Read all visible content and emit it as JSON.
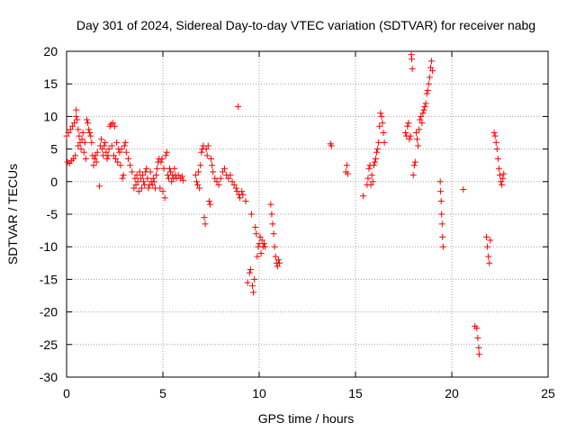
{
  "chart_data": {
    "type": "scatter",
    "title": "Day 301 of 2024, Sidereal Day-to-day VTEC variation (SDTVAR) for receiver nabg",
    "xlabel": "GPS time / hours",
    "ylabel": "SDTVAR / TECUs",
    "xlim": [
      0,
      25
    ],
    "ylim": [
      -30,
      20
    ],
    "xticks": [
      0,
      5,
      10,
      15,
      20,
      25
    ],
    "yticks": [
      -30,
      -25,
      -20,
      -15,
      -10,
      -5,
      0,
      5,
      10,
      15,
      20
    ],
    "grid": true,
    "marker": "plus",
    "color": "#ff0000",
    "series": [
      {
        "name": "SDTVAR",
        "points": [
          [
            0.0,
            7.0
          ],
          [
            0.05,
            3.0
          ],
          [
            0.1,
            7.5
          ],
          [
            0.15,
            2.8
          ],
          [
            0.2,
            8.0
          ],
          [
            0.25,
            3.2
          ],
          [
            0.3,
            8.5
          ],
          [
            0.35,
            3.5
          ],
          [
            0.4,
            9.0
          ],
          [
            0.45,
            4.0
          ],
          [
            0.5,
            10.0
          ],
          [
            0.5,
            11.0
          ],
          [
            0.55,
            9.5
          ],
          [
            0.6,
            8.0
          ],
          [
            0.6,
            5.5
          ],
          [
            0.65,
            7.0
          ],
          [
            0.7,
            6.0
          ],
          [
            0.75,
            5.0
          ],
          [
            0.8,
            6.5
          ],
          [
            0.85,
            7.5
          ],
          [
            0.9,
            4.5
          ],
          [
            0.95,
            6.0
          ],
          [
            1.0,
            3.5
          ],
          [
            1.05,
            9.5
          ],
          [
            1.1,
            9.0
          ],
          [
            1.15,
            8.0
          ],
          [
            1.2,
            7.5
          ],
          [
            1.25,
            7.0
          ],
          [
            1.3,
            6.0
          ],
          [
            1.35,
            4.0
          ],
          [
            1.4,
            2.5
          ],
          [
            1.45,
            3.5
          ],
          [
            1.5,
            4.0
          ],
          [
            1.55,
            3.0
          ],
          [
            1.6,
            4.5
          ],
          [
            1.7,
            -0.7
          ],
          [
            1.75,
            5.5
          ],
          [
            1.8,
            6.5
          ],
          [
            1.85,
            5.0
          ],
          [
            1.9,
            4.0
          ],
          [
            1.95,
            5.5
          ],
          [
            2.0,
            6.0
          ],
          [
            2.05,
            4.5
          ],
          [
            2.1,
            3.5
          ],
          [
            2.15,
            4.0
          ],
          [
            2.2,
            5.0
          ],
          [
            2.25,
            8.5
          ],
          [
            2.3,
            8.8
          ],
          [
            2.35,
            5.5
          ],
          [
            2.4,
            9.0
          ],
          [
            2.45,
            4.0
          ],
          [
            2.5,
            8.5
          ],
          [
            2.55,
            3.5
          ],
          [
            2.6,
            6.0
          ],
          [
            2.65,
            3.0
          ],
          [
            2.7,
            5.0
          ],
          [
            2.75,
            4.5
          ],
          [
            2.8,
            2.5
          ],
          [
            2.85,
            5.0
          ],
          [
            2.9,
            0.5
          ],
          [
            2.95,
            1.0
          ],
          [
            3.0,
            5.5
          ],
          [
            3.05,
            6.0
          ],
          [
            3.1,
            4.5
          ],
          [
            3.2,
            3.5
          ],
          [
            3.3,
            2.5
          ],
          [
            3.4,
            1.5
          ],
          [
            3.5,
            -1.0
          ],
          [
            3.55,
            0.5
          ],
          [
            3.6,
            -0.5
          ],
          [
            3.65,
            1.0
          ],
          [
            3.7,
            0.0
          ],
          [
            3.75,
            -1.5
          ],
          [
            3.8,
            1.5
          ],
          [
            3.85,
            0.5
          ],
          [
            3.9,
            -1.0
          ],
          [
            3.95,
            1.0
          ],
          [
            4.0,
            0.0
          ],
          [
            4.05,
            -0.5
          ],
          [
            4.1,
            1.5
          ],
          [
            4.15,
            2.0
          ],
          [
            4.2,
            0.5
          ],
          [
            4.25,
            -1.0
          ],
          [
            4.3,
            -0.5
          ],
          [
            4.35,
            1.5
          ],
          [
            4.4,
            0.0
          ],
          [
            4.45,
            -0.5
          ],
          [
            4.5,
            0.5
          ],
          [
            4.55,
            0.0
          ],
          [
            4.6,
            -1.0
          ],
          [
            4.65,
            1.0
          ],
          [
            4.7,
            2.0
          ],
          [
            4.75,
            3.0
          ],
          [
            4.8,
            3.5
          ],
          [
            4.85,
            -1.0
          ],
          [
            4.9,
            3.0
          ],
          [
            4.95,
            3.5
          ],
          [
            5.0,
            -1.5
          ],
          [
            5.05,
            2.0
          ],
          [
            5.1,
            -2.5
          ],
          [
            5.15,
            4.0
          ],
          [
            5.2,
            4.5
          ],
          [
            5.25,
            1.0
          ],
          [
            5.3,
            0.5
          ],
          [
            5.35,
            2.0
          ],
          [
            5.4,
            1.5
          ],
          [
            5.45,
            0.0
          ],
          [
            5.5,
            1.0
          ],
          [
            5.55,
            0.5
          ],
          [
            5.6,
            2.0
          ],
          [
            5.65,
            1.0
          ],
          [
            5.7,
            0.5
          ],
          [
            5.8,
            1.0
          ],
          [
            5.9,
            0.5
          ],
          [
            6.0,
            0.8
          ],
          [
            6.05,
            0.2
          ],
          [
            6.7,
            1.0
          ],
          [
            6.75,
            0.0
          ],
          [
            6.8,
            -0.5
          ],
          [
            6.85,
            1.5
          ],
          [
            6.9,
            -1.0
          ],
          [
            6.95,
            2.5
          ],
          [
            7.0,
            4.5
          ],
          [
            7.05,
            5.0
          ],
          [
            7.1,
            5.5
          ],
          [
            7.15,
            -5.5
          ],
          [
            7.2,
            -6.5
          ],
          [
            7.25,
            5.0
          ],
          [
            7.3,
            4.0
          ],
          [
            7.35,
            5.5
          ],
          [
            7.4,
            -3.0
          ],
          [
            7.45,
            -3.5
          ],
          [
            7.5,
            3.5
          ],
          [
            7.55,
            2.5
          ],
          [
            7.6,
            1.5
          ],
          [
            7.7,
            0.5
          ],
          [
            7.8,
            0.0
          ],
          [
            7.9,
            -0.5
          ],
          [
            8.0,
            0.5
          ],
          [
            8.1,
            1.5
          ],
          [
            8.2,
            2.0
          ],
          [
            8.3,
            1.0
          ],
          [
            8.4,
            0.5
          ],
          [
            8.5,
            1.0
          ],
          [
            8.6,
            0.0
          ],
          [
            8.7,
            -0.5
          ],
          [
            8.8,
            -1.0
          ],
          [
            8.85,
            -1.5
          ],
          [
            8.9,
            11.5
          ],
          [
            8.95,
            -2.0
          ],
          [
            9.0,
            -2.5
          ],
          [
            9.1,
            -1.5
          ],
          [
            9.15,
            -2.0
          ],
          [
            9.3,
            -3.0
          ],
          [
            9.4,
            -15.5
          ],
          [
            9.5,
            -14.0
          ],
          [
            9.55,
            -13.5
          ],
          [
            9.6,
            -5.0
          ],
          [
            9.65,
            -16.0
          ],
          [
            9.7,
            -17.0
          ],
          [
            9.75,
            -15.0
          ],
          [
            9.8,
            -7.0
          ],
          [
            9.85,
            -8.0
          ],
          [
            9.9,
            -11.5
          ],
          [
            9.95,
            -10.0
          ],
          [
            10.0,
            -9.5
          ],
          [
            10.05,
            -8.5
          ],
          [
            10.1,
            -11.0
          ],
          [
            10.15,
            -9.0
          ],
          [
            10.2,
            -10.0
          ],
          [
            10.25,
            -9.5
          ],
          [
            10.3,
            -10.0
          ],
          [
            10.6,
            -3.5
          ],
          [
            10.65,
            -5.0
          ],
          [
            10.7,
            -6.5
          ],
          [
            10.75,
            -8.0
          ],
          [
            10.8,
            -10.0
          ],
          [
            10.85,
            -11.5
          ],
          [
            10.9,
            -12.5
          ],
          [
            10.95,
            -13.0
          ],
          [
            11.0,
            -12.0
          ],
          [
            11.05,
            -12.5
          ],
          [
            13.7,
            5.8
          ],
          [
            13.75,
            5.5
          ],
          [
            14.5,
            1.5
          ],
          [
            14.55,
            2.5
          ],
          [
            14.6,
            1.2
          ],
          [
            15.4,
            -2.2
          ],
          [
            15.6,
            -0.5
          ],
          [
            15.65,
            0.5
          ],
          [
            15.7,
            2.0
          ],
          [
            15.75,
            2.5
          ],
          [
            15.8,
            -0.5
          ],
          [
            15.85,
            1.0
          ],
          [
            15.9,
            0.0
          ],
          [
            15.95,
            2.5
          ],
          [
            16.0,
            3.0
          ],
          [
            16.05,
            3.5
          ],
          [
            16.1,
            4.5
          ],
          [
            16.15,
            5.0
          ],
          [
            16.2,
            6.0
          ],
          [
            16.25,
            8.5
          ],
          [
            16.3,
            10.5
          ],
          [
            16.35,
            10.0
          ],
          [
            16.4,
            9.0
          ],
          [
            16.45,
            7.5
          ],
          [
            16.5,
            6.0
          ],
          [
            17.6,
            7.5
          ],
          [
            17.65,
            7.0
          ],
          [
            17.7,
            8.5
          ],
          [
            17.75,
            9.0
          ],
          [
            17.8,
            6.5
          ],
          [
            17.85,
            7.0
          ],
          [
            17.9,
            19.5
          ],
          [
            17.92,
            18.8
          ],
          [
            17.95,
            17.3
          ],
          [
            18.0,
            1.0
          ],
          [
            18.05,
            2.5
          ],
          [
            18.1,
            3.0
          ],
          [
            18.15,
            7.5
          ],
          [
            18.2,
            6.5
          ],
          [
            18.25,
            5.5
          ],
          [
            18.3,
            8.0
          ],
          [
            18.35,
            9.5
          ],
          [
            18.4,
            10.0
          ],
          [
            18.45,
            9.0
          ],
          [
            18.5,
            10.5
          ],
          [
            18.55,
            11.0
          ],
          [
            18.6,
            11.5
          ],
          [
            18.65,
            12.0
          ],
          [
            18.7,
            13.5
          ],
          [
            18.75,
            14.0
          ],
          [
            18.8,
            15.0
          ],
          [
            18.85,
            16.0
          ],
          [
            18.9,
            17.5
          ],
          [
            18.95,
            18.5
          ],
          [
            19.0,
            17.0
          ],
          [
            19.4,
            0.0
          ],
          [
            19.42,
            -1.5
          ],
          [
            19.45,
            -3.0
          ],
          [
            19.47,
            -5.0
          ],
          [
            19.5,
            -6.5
          ],
          [
            19.52,
            -8.5
          ],
          [
            19.55,
            -10.0
          ],
          [
            20.6,
            -1.2
          ],
          [
            21.2,
            -22.2
          ],
          [
            21.3,
            -22.5
          ],
          [
            21.35,
            -24.0
          ],
          [
            21.4,
            -25.5
          ],
          [
            21.42,
            -26.5
          ],
          [
            21.8,
            -8.5
          ],
          [
            21.85,
            -10.0
          ],
          [
            21.9,
            -11.5
          ],
          [
            21.95,
            -12.5
          ],
          [
            22.0,
            -9.0
          ],
          [
            22.2,
            7.5
          ],
          [
            22.25,
            7.0
          ],
          [
            22.3,
            6.0
          ],
          [
            22.35,
            5.0
          ],
          [
            22.4,
            3.5
          ],
          [
            22.45,
            2.0
          ],
          [
            22.5,
            1.0
          ],
          [
            22.55,
            0.0
          ],
          [
            22.6,
            -0.5
          ],
          [
            22.65,
            0.5
          ],
          [
            22.7,
            1.2
          ]
        ]
      }
    ]
  }
}
